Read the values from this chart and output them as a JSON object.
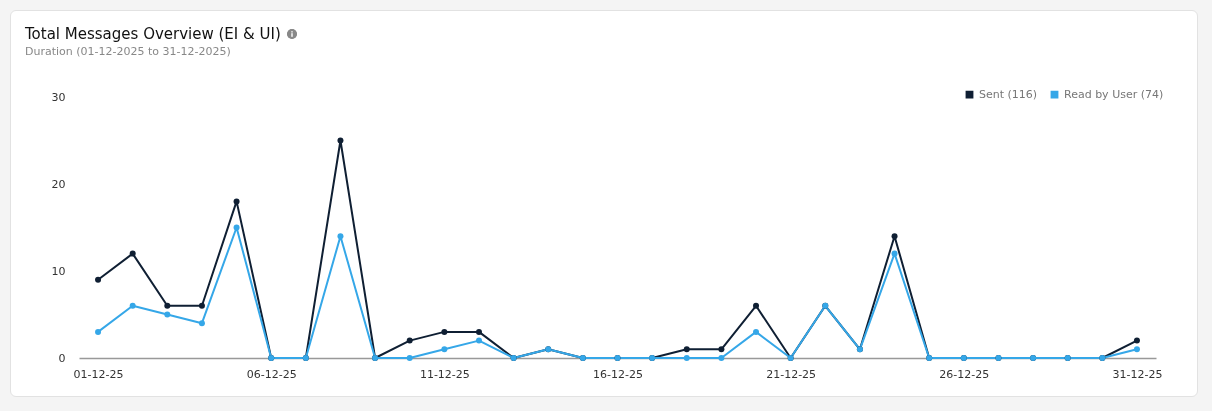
{
  "chart_data": {
    "type": "line",
    "title": "Total Messages Overview (EI & UI)",
    "subtitle": "Duration (01-12-2025 to 31-12-2025)",
    "categories": [
      "01-12-25",
      null,
      null,
      null,
      null,
      "06-12-25",
      null,
      null,
      null,
      null,
      "11-12-25",
      null,
      null,
      null,
      null,
      "16-12-25",
      null,
      null,
      null,
      null,
      "21-12-25",
      null,
      null,
      null,
      null,
      "26-12-25",
      null,
      null,
      null,
      null,
      "31-12-25"
    ],
    "series": [
      {
        "name": "Sent (116)",
        "color": "#0f1f33",
        "values": [
          9,
          12,
          6,
          6,
          18,
          0,
          0,
          25,
          0,
          2,
          3,
          3,
          0,
          1,
          0,
          0,
          0,
          1,
          1,
          6,
          0,
          6,
          1,
          14,
          0,
          0,
          0,
          0,
          0,
          0,
          2
        ]
      },
      {
        "name": "Read by User (74)",
        "color": "#35a7e8",
        "values": [
          3,
          6,
          5,
          4,
          15,
          0,
          0,
          14,
          0,
          0,
          1,
          2,
          0,
          1,
          0,
          0,
          0,
          0,
          0,
          3,
          0,
          6,
          1,
          12,
          0,
          0,
          0,
          0,
          0,
          0,
          1
        ]
      }
    ],
    "ylim": [
      0,
      30
    ],
    "yticks": [
      0,
      10,
      20,
      30
    ],
    "grid": false,
    "legend": "top right",
    "marker": "circle",
    "line_style": "solid"
  }
}
